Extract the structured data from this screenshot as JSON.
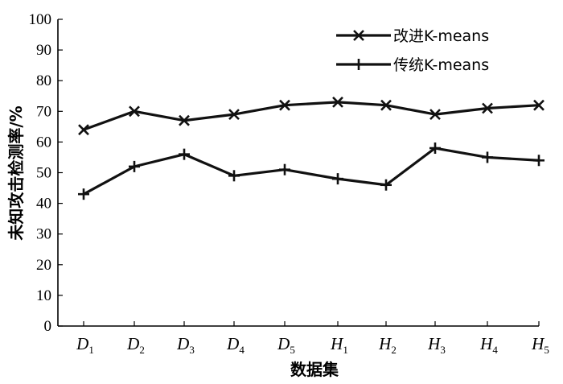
{
  "chart_data": {
    "type": "line",
    "categories": [
      {
        "main": "D",
        "sub": "1"
      },
      {
        "main": "D",
        "sub": "2"
      },
      {
        "main": "D",
        "sub": "3"
      },
      {
        "main": "D",
        "sub": "4"
      },
      {
        "main": "D",
        "sub": "5"
      },
      {
        "main": "H",
        "sub": "1"
      },
      {
        "main": "H",
        "sub": "2"
      },
      {
        "main": "H",
        "sub": "3"
      },
      {
        "main": "H",
        "sub": "4"
      },
      {
        "main": "H",
        "sub": "5"
      }
    ],
    "series": [
      {
        "name": "改进K-means",
        "marker": "x",
        "values": [
          64,
          70,
          67,
          69,
          72,
          73,
          72,
          69,
          71,
          72
        ]
      },
      {
        "name": "传统K-means",
        "marker": "plus",
        "values": [
          43,
          52,
          56,
          49,
          51,
          48,
          46,
          58,
          55,
          54
        ]
      }
    ],
    "xlabel": "数据集",
    "ylabel": "未知攻击检测率/%",
    "ylim": [
      0,
      100
    ],
    "yticks": [
      0,
      10,
      20,
      30,
      40,
      50,
      60,
      70,
      80,
      90,
      100
    ],
    "grid": false,
    "legend_position": "top-right"
  }
}
